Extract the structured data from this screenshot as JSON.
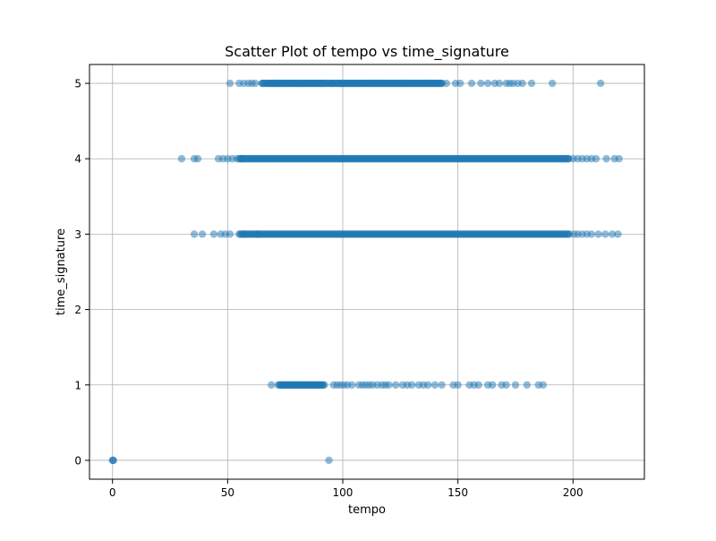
{
  "chart_data": {
    "type": "scatter",
    "title": "Scatter Plot of tempo vs time_signature",
    "xlabel": "tempo",
    "ylabel": "time_signature",
    "xlim": [
      -10,
      231
    ],
    "ylim": [
      -0.25,
      5.25
    ],
    "xticks": [
      0,
      50,
      100,
      150,
      200
    ],
    "yticks": [
      0,
      1,
      2,
      3,
      4,
      5
    ],
    "grid": true,
    "marker_color": "#1f77b4",
    "marker_alpha": 0.5,
    "series": [
      {
        "name": "tempo vs time_signature",
        "points": [
          {
            "x": 0,
            "y": 0
          },
          {
            "x": 0.2,
            "y": 0
          },
          {
            "x": 0.4,
            "y": 0
          },
          {
            "x": 94,
            "y": 0
          },
          {
            "x": 69,
            "y": 1
          },
          {
            "x": 73,
            "y": 1
          },
          {
            "x": 74.5,
            "y": 1
          },
          {
            "x": 76,
            "y": 1
          },
          {
            "x": 77.5,
            "y": 1
          },
          {
            "x": 79,
            "y": 1
          },
          {
            "x": 80.5,
            "y": 1
          },
          {
            "x": 82,
            "y": 1
          },
          {
            "x": 83.5,
            "y": 1
          },
          {
            "x": 85,
            "y": 1
          },
          {
            "x": 86.5,
            "y": 1
          },
          {
            "x": 88,
            "y": 1
          },
          {
            "x": 89.5,
            "y": 1
          },
          {
            "x": 91,
            "y": 1
          },
          {
            "x": 96,
            "y": 1
          },
          {
            "x": 97.5,
            "y": 1
          },
          {
            "x": 99,
            "y": 1
          },
          {
            "x": 100.5,
            "y": 1
          },
          {
            "x": 102,
            "y": 1
          },
          {
            "x": 104,
            "y": 1
          },
          {
            "x": 107,
            "y": 1
          },
          {
            "x": 108.5,
            "y": 1
          },
          {
            "x": 110,
            "y": 1
          },
          {
            "x": 111.5,
            "y": 1
          },
          {
            "x": 113,
            "y": 1
          },
          {
            "x": 115,
            "y": 1
          },
          {
            "x": 117,
            "y": 1
          },
          {
            "x": 118.5,
            "y": 1
          },
          {
            "x": 120,
            "y": 1
          },
          {
            "x": 123,
            "y": 1
          },
          {
            "x": 126,
            "y": 1
          },
          {
            "x": 128,
            "y": 1
          },
          {
            "x": 130,
            "y": 1
          },
          {
            "x": 133,
            "y": 1
          },
          {
            "x": 135,
            "y": 1
          },
          {
            "x": 137,
            "y": 1
          },
          {
            "x": 140,
            "y": 1
          },
          {
            "x": 143,
            "y": 1
          },
          {
            "x": 148,
            "y": 1
          },
          {
            "x": 150,
            "y": 1
          },
          {
            "x": 155,
            "y": 1
          },
          {
            "x": 157,
            "y": 1
          },
          {
            "x": 159,
            "y": 1
          },
          {
            "x": 163,
            "y": 1
          },
          {
            "x": 165,
            "y": 1
          },
          {
            "x": 169,
            "y": 1
          },
          {
            "x": 171,
            "y": 1
          },
          {
            "x": 175,
            "y": 1
          },
          {
            "x": 180,
            "y": 1
          },
          {
            "x": 185,
            "y": 1
          },
          {
            "x": 187,
            "y": 1
          },
          {
            "x": 35.5,
            "y": 3
          },
          {
            "x": 39,
            "y": 3
          },
          {
            "x": 44,
            "y": 3
          },
          {
            "x": 47,
            "y": 3
          },
          {
            "x": 49,
            "y": 3
          },
          {
            "x": 51,
            "y": 3
          },
          {
            "x": 57,
            "y": 3
          },
          {
            "x": 63,
            "y": 3
          },
          {
            "x": 198.5,
            "y": 3
          },
          {
            "x": 200.5,
            "y": 3
          },
          {
            "x": 202,
            "y": 3
          },
          {
            "x": 204,
            "y": 3
          },
          {
            "x": 206,
            "y": 3
          },
          {
            "x": 208,
            "y": 3
          },
          {
            "x": 211,
            "y": 3
          },
          {
            "x": 214,
            "y": 3
          },
          {
            "x": 217,
            "y": 3
          },
          {
            "x": 219.5,
            "y": 3
          },
          {
            "x": 30,
            "y": 4
          },
          {
            "x": 35.5,
            "y": 4
          },
          {
            "x": 37,
            "y": 4
          },
          {
            "x": 46,
            "y": 4
          },
          {
            "x": 48,
            "y": 4
          },
          {
            "x": 50,
            "y": 4
          },
          {
            "x": 52,
            "y": 4
          },
          {
            "x": 54,
            "y": 4
          },
          {
            "x": 56,
            "y": 4
          },
          {
            "x": 198,
            "y": 4
          },
          {
            "x": 200,
            "y": 4
          },
          {
            "x": 202,
            "y": 4
          },
          {
            "x": 204,
            "y": 4
          },
          {
            "x": 206,
            "y": 4
          },
          {
            "x": 208,
            "y": 4
          },
          {
            "x": 210,
            "y": 4
          },
          {
            "x": 214.5,
            "y": 4
          },
          {
            "x": 218,
            "y": 4
          },
          {
            "x": 220,
            "y": 4
          },
          {
            "x": 51,
            "y": 5
          },
          {
            "x": 55,
            "y": 5
          },
          {
            "x": 57,
            "y": 5
          },
          {
            "x": 59,
            "y": 5
          },
          {
            "x": 60.5,
            "y": 5
          },
          {
            "x": 62,
            "y": 5
          },
          {
            "x": 65,
            "y": 5
          },
          {
            "x": 68,
            "y": 5
          },
          {
            "x": 69.5,
            "y": 5
          },
          {
            "x": 71,
            "y": 5
          },
          {
            "x": 72.5,
            "y": 5
          },
          {
            "x": 74,
            "y": 5
          },
          {
            "x": 75.5,
            "y": 5
          },
          {
            "x": 77,
            "y": 5
          },
          {
            "x": 78.5,
            "y": 5
          },
          {
            "x": 80,
            "y": 5
          },
          {
            "x": 81.5,
            "y": 5
          },
          {
            "x": 83,
            "y": 5
          },
          {
            "x": 84.5,
            "y": 5
          },
          {
            "x": 86,
            "y": 5
          },
          {
            "x": 87.5,
            "y": 5
          },
          {
            "x": 89,
            "y": 5
          },
          {
            "x": 90.5,
            "y": 5
          },
          {
            "x": 92,
            "y": 5
          },
          {
            "x": 95,
            "y": 5
          },
          {
            "x": 98,
            "y": 5
          },
          {
            "x": 99.5,
            "y": 5
          },
          {
            "x": 101,
            "y": 5
          },
          {
            "x": 102.5,
            "y": 5
          },
          {
            "x": 104,
            "y": 5
          },
          {
            "x": 105.5,
            "y": 5
          },
          {
            "x": 107,
            "y": 5
          },
          {
            "x": 108.5,
            "y": 5
          },
          {
            "x": 110,
            "y": 5
          },
          {
            "x": 111.5,
            "y": 5
          },
          {
            "x": 113,
            "y": 5
          },
          {
            "x": 114.5,
            "y": 5
          },
          {
            "x": 116,
            "y": 5
          },
          {
            "x": 117.5,
            "y": 5
          },
          {
            "x": 119,
            "y": 5
          },
          {
            "x": 120.5,
            "y": 5
          },
          {
            "x": 122,
            "y": 5
          },
          {
            "x": 123.5,
            "y": 5
          },
          {
            "x": 125,
            "y": 5
          },
          {
            "x": 126.5,
            "y": 5
          },
          {
            "x": 128,
            "y": 5
          },
          {
            "x": 129.5,
            "y": 5
          },
          {
            "x": 131,
            "y": 5
          },
          {
            "x": 132.5,
            "y": 5
          },
          {
            "x": 134,
            "y": 5
          },
          {
            "x": 135.5,
            "y": 5
          },
          {
            "x": 137,
            "y": 5
          },
          {
            "x": 138.5,
            "y": 5
          },
          {
            "x": 140,
            "y": 5
          },
          {
            "x": 141.5,
            "y": 5
          },
          {
            "x": 143,
            "y": 5
          },
          {
            "x": 145,
            "y": 5
          },
          {
            "x": 149,
            "y": 5
          },
          {
            "x": 151,
            "y": 5
          },
          {
            "x": 156,
            "y": 5
          },
          {
            "x": 160,
            "y": 5
          },
          {
            "x": 163,
            "y": 5
          },
          {
            "x": 166,
            "y": 5
          },
          {
            "x": 168,
            "y": 5
          },
          {
            "x": 171,
            "y": 5
          },
          {
            "x": 172.5,
            "y": 5
          },
          {
            "x": 174,
            "y": 5
          },
          {
            "x": 176,
            "y": 5
          },
          {
            "x": 178,
            "y": 5
          },
          {
            "x": 182,
            "y": 5
          },
          {
            "x": 191,
            "y": 5
          },
          {
            "x": 212,
            "y": 5
          }
        ],
        "dense_bands": [
          {
            "y": 1,
            "x_min": 72,
            "x_max": 92
          },
          {
            "y": 3,
            "x_min": 55,
            "x_max": 198
          },
          {
            "y": 4,
            "x_min": 55,
            "x_max": 198
          },
          {
            "y": 5,
            "x_min": 65,
            "x_max": 143
          }
        ]
      }
    ]
  }
}
